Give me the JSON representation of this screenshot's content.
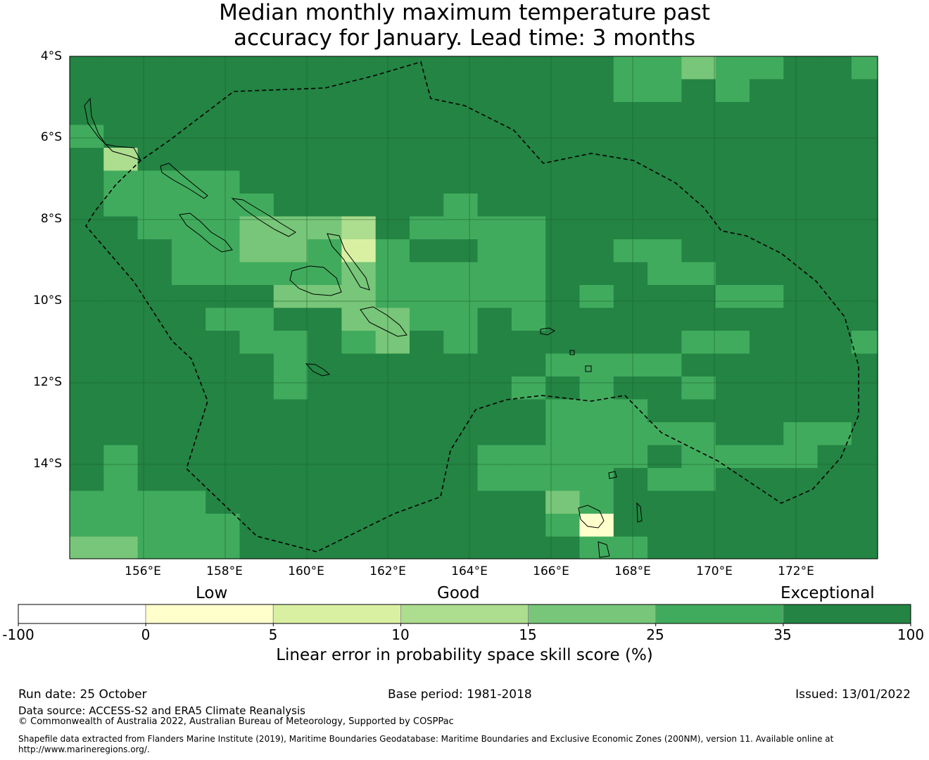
{
  "title_line1": "Median monthly maximum temperature past",
  "title_line2": "accuracy for January. Lead time: 3 months",
  "map": {
    "lat_labels": [
      "4°S",
      "6°S",
      "8°S",
      "10°S",
      "12°S",
      "14°S"
    ],
    "lon_labels": [
      "156°E",
      "158°E",
      "160°E",
      "162°E",
      "164°E",
      "166°E",
      "168°E",
      "170°E",
      "172°E"
    ],
    "lat_range": [
      -16.3,
      -4.0
    ],
    "lon_range": [
      154.2,
      174.0
    ]
  },
  "colorbar": {
    "categories": [
      "Low",
      "Good",
      "Exceptional"
    ],
    "tick_labels": [
      "-100",
      "0",
      "5",
      "10",
      "15",
      "25",
      "35",
      "100"
    ],
    "bin_colors": [
      "#ffffff",
      "#ffffcc",
      "#d9f0a3",
      "#addd8e",
      "#78c679",
      "#41ab5d",
      "#238443"
    ],
    "title": "Linear error in probability space skill score (%)"
  },
  "footer": {
    "run_date": "Run date: 25 October",
    "base_period": "Base period: 1981-2018",
    "issued": "Issued: 13/01/2022",
    "data_source": "Data source: ACCESS-S2 and ERA5 Climate Reanalysis",
    "copyright": "© Commonwealth of Australia 2022, Australian Bureau of Meteorology, Supported by COSPPac",
    "shapefile": "Shapefile data extracted from Flanders Marine Institute (2019), Maritime Boundaries Geodatabase: Maritime Boundaries and Exclusive Economic Zones (200NM), version 11. Available online at http://www.marineregions.org/."
  }
}
